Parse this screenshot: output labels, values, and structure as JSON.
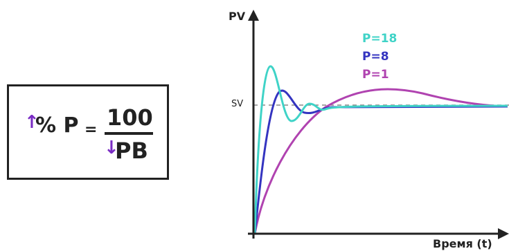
{
  "formula": {
    "up_arrow": "↑",
    "percent_p": "% P",
    "equals": "=",
    "numerator": "100",
    "down_arrow": "↓",
    "denominator": "PB",
    "arrow_color": "#7a2cc4"
  },
  "chart_data": {
    "type": "line",
    "ylabel": "PV",
    "xlabel": "Время (t)",
    "setpoint_label": "SV",
    "setpoint_style": "dashed",
    "series": [
      {
        "name": "P=18",
        "color": "#3fd3c7"
      },
      {
        "name": "P=8",
        "color": "#3434c0"
      },
      {
        "name": "P=1",
        "color": "#b043b0"
      }
    ]
  }
}
